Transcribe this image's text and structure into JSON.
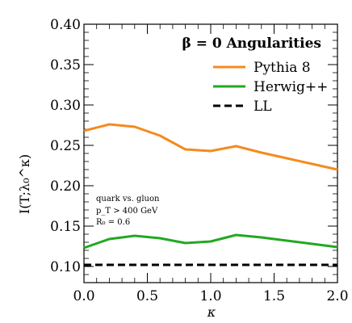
{
  "chart_data": {
    "type": "line",
    "xlabel": "κ",
    "ylabel": "I(T;λ₀^κ)",
    "xlim": [
      0,
      2.0
    ],
    "ylim": [
      0.08,
      0.4
    ],
    "x_ticks": [
      "0.0",
      "0.5",
      "1.0",
      "1.5",
      "2.0"
    ],
    "y_ticks": [
      "0.10",
      "0.15",
      "0.20",
      "0.25",
      "0.30",
      "0.35",
      "0.40"
    ],
    "legend": {
      "title": "β = 0 Angularities",
      "placement": "top-right"
    },
    "annotations": [
      "quark vs. gluon",
      "p_T > 400 GeV",
      "R₀ = 0.6"
    ],
    "series": [
      {
        "name": "Pythia 8",
        "color": "#f58a1f",
        "style": "solid",
        "x": [
          0.0,
          0.2,
          0.4,
          0.6,
          0.8,
          1.0,
          1.2,
          1.4,
          1.6,
          1.8,
          2.0
        ],
        "y": [
          0.268,
          0.276,
          0.273,
          0.262,
          0.245,
          0.243,
          0.249,
          0.241,
          0.234,
          0.227,
          0.22
        ]
      },
      {
        "name": "Herwig++",
        "color": "#22a822",
        "style": "solid",
        "x": [
          0.0,
          0.2,
          0.4,
          0.6,
          0.8,
          1.0,
          1.2,
          1.4,
          1.6,
          1.8,
          2.0
        ],
        "y": [
          0.123,
          0.134,
          0.138,
          0.135,
          0.129,
          0.131,
          0.139,
          0.136,
          0.132,
          0.128,
          0.124
        ]
      },
      {
        "name": "LL",
        "color": "#000000",
        "style": "dashed",
        "x": [
          0.0,
          2.0
        ],
        "y": [
          0.102,
          0.102
        ]
      }
    ]
  }
}
